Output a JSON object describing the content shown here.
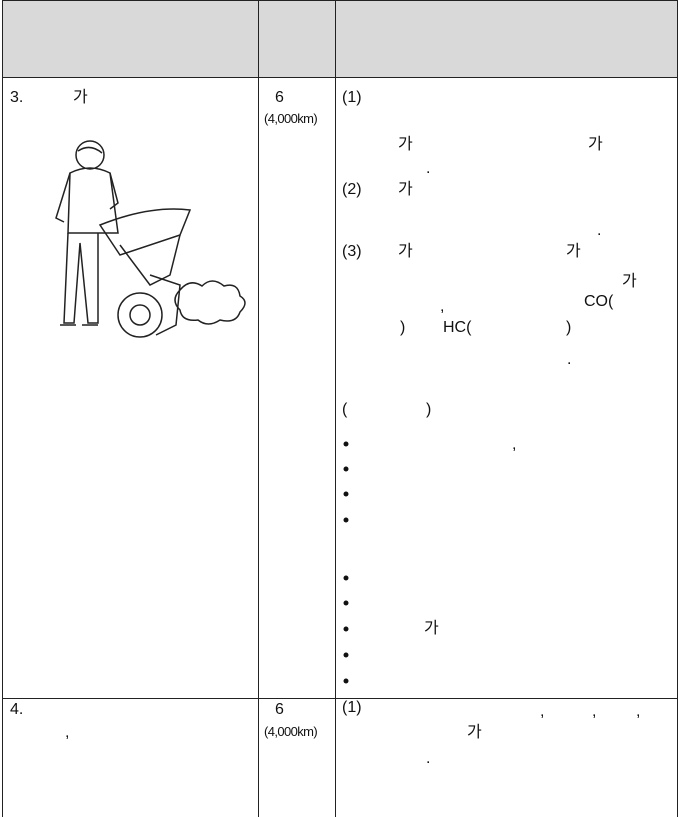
{
  "table": {
    "rows": [
      {
        "item": [
          "3.",
          "가"
        ],
        "period": [
          "6",
          "(4,000km)"
        ],
        "notes": [
          "(1)",
          "가",
          "가",
          ".",
          "(2)",
          "가",
          ".",
          "(3)",
          "가",
          "가",
          "가",
          ",",
          "CO(",
          ")",
          "HC(",
          ")",
          ".",
          "(",
          ")",
          ",",
          "가"
        ]
      },
      {
        "item": [
          "4.",
          ","
        ],
        "period": [
          "6",
          "(4,000km)"
        ],
        "notes": [
          "(1)",
          ",",
          ",",
          ",",
          "가",
          "."
        ]
      }
    ]
  }
}
